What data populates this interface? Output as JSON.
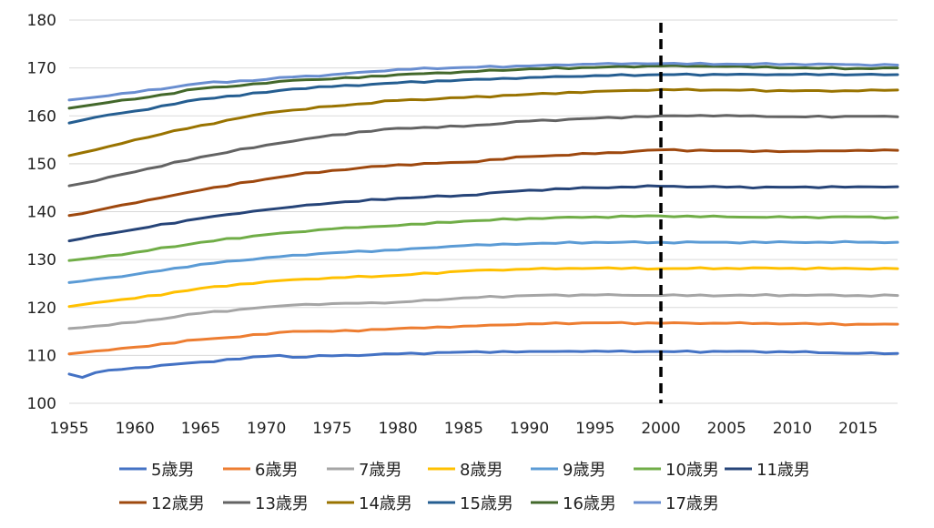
{
  "chart_data": {
    "type": "line",
    "title": "",
    "xlabel": "",
    "ylabel": "",
    "xlim": [
      1955,
      2018
    ],
    "ylim": [
      100,
      180
    ],
    "yticks": [
      100,
      110,
      120,
      130,
      140,
      150,
      160,
      170,
      180
    ],
    "xticks": [
      1955,
      1960,
      1965,
      1970,
      1975,
      1980,
      1985,
      1990,
      1995,
      2000,
      2005,
      2010,
      2015
    ],
    "grid": true,
    "legend_position": "bottom",
    "reference_line": {
      "x": 2000,
      "style": "dashed",
      "color": "#000000"
    },
    "keyframes_x": [
      1955,
      1956,
      1957,
      1958,
      1960,
      1965,
      1970,
      1971,
      1972,
      1975,
      1980,
      1985,
      1990,
      1995,
      2000,
      2005,
      2010,
      2015,
      2018
    ],
    "series": [
      {
        "name": "5歳男",
        "color": "#4472C4",
        "keyframes": [
          106.1,
          105.4,
          106.4,
          106.9,
          107.4,
          108.6,
          109.8,
          110.0,
          109.6,
          109.9,
          110.3,
          110.7,
          110.8,
          110.9,
          110.8,
          110.8,
          110.7,
          110.4,
          110.4
        ]
      },
      {
        "name": "6歳男",
        "color": "#ED7D31",
        "keyframes": [
          110.3,
          110.6,
          110.9,
          111.1,
          111.7,
          113.3,
          114.4,
          114.8,
          115.0,
          115.0,
          115.6,
          116.1,
          116.6,
          116.8,
          116.7,
          116.7,
          116.6,
          116.5,
          116.5
        ]
      },
      {
        "name": "7歳男",
        "color": "#A5A5A5",
        "keyframes": [
          115.6,
          115.8,
          116.1,
          116.3,
          116.9,
          118.8,
          120.1,
          120.3,
          120.5,
          120.8,
          121.1,
          122.0,
          122.5,
          122.6,
          122.5,
          122.5,
          122.6,
          122.5,
          122.5
        ]
      },
      {
        "name": "8歳男",
        "color": "#FFC000",
        "keyframes": [
          120.2,
          120.6,
          121.0,
          121.3,
          121.9,
          124.0,
          125.4,
          125.6,
          125.8,
          126.2,
          126.7,
          127.6,
          128.0,
          128.2,
          128.1,
          128.2,
          128.2,
          128.1,
          128.1
        ]
      },
      {
        "name": "9歳男",
        "color": "#5B9BD5",
        "keyframes": [
          125.2,
          125.5,
          125.9,
          126.2,
          126.9,
          129.0,
          130.4,
          130.6,
          130.9,
          131.4,
          132.0,
          132.9,
          133.3,
          133.6,
          133.6,
          133.6,
          133.6,
          133.6,
          133.6
        ]
      },
      {
        "name": "10歳男",
        "color": "#70AD47",
        "keyframes": [
          129.8,
          130.1,
          130.4,
          130.8,
          131.5,
          133.6,
          135.2,
          135.5,
          135.7,
          136.4,
          137.1,
          138.0,
          138.6,
          138.9,
          139.1,
          138.9,
          138.8,
          138.9,
          138.8
        ]
      },
      {
        "name": "11歳男",
        "color": "#264478",
        "keyframes": [
          133.9,
          134.4,
          135.0,
          135.4,
          136.3,
          138.6,
          140.4,
          140.7,
          141.0,
          141.8,
          142.8,
          143.4,
          144.5,
          145.0,
          145.3,
          145.1,
          145.1,
          145.2,
          145.2
        ]
      },
      {
        "name": "12歳男",
        "color": "#9E480E",
        "keyframes": [
          139.2,
          139.6,
          140.2,
          140.8,
          141.8,
          144.5,
          146.8,
          147.2,
          147.6,
          148.6,
          149.8,
          150.3,
          151.5,
          152.1,
          152.9,
          152.7,
          152.6,
          152.8,
          152.8
        ]
      },
      {
        "name": "13歳男",
        "color": "#636363",
        "keyframes": [
          145.4,
          145.9,
          146.4,
          147.2,
          148.3,
          151.4,
          153.9,
          154.3,
          154.7,
          156.0,
          157.4,
          157.8,
          158.9,
          159.5,
          160.0,
          160.1,
          159.8,
          159.9,
          159.8
        ]
      },
      {
        "name": "14歳男",
        "color": "#997300",
        "keyframes": [
          151.7,
          152.3,
          152.9,
          153.6,
          155.0,
          158.0,
          160.6,
          160.9,
          161.2,
          162.0,
          163.2,
          163.8,
          164.5,
          165.1,
          165.5,
          165.4,
          165.2,
          165.2,
          165.4
        ]
      },
      {
        "name": "15歳男",
        "color": "#255E91",
        "keyframes": [
          158.5,
          159.1,
          159.7,
          160.2,
          161.0,
          163.5,
          164.9,
          165.3,
          165.6,
          166.1,
          166.9,
          167.5,
          168.0,
          168.4,
          168.6,
          168.6,
          168.6,
          168.6,
          168.6
        ]
      },
      {
        "name": "16歳男",
        "color": "#43682B",
        "keyframes": [
          161.6,
          162.0,
          162.4,
          162.8,
          163.5,
          165.7,
          166.8,
          167.2,
          167.4,
          167.7,
          168.6,
          169.2,
          169.8,
          170.1,
          170.4,
          170.3,
          170.0,
          169.9,
          170.0
        ]
      },
      {
        "name": "17歳男",
        "color": "#698ED0",
        "keyframes": [
          163.3,
          163.6,
          163.9,
          164.2,
          164.9,
          166.8,
          167.6,
          168.0,
          168.1,
          168.6,
          169.7,
          170.1,
          170.4,
          170.8,
          170.9,
          170.8,
          170.8,
          170.7,
          170.6
        ]
      }
    ]
  }
}
